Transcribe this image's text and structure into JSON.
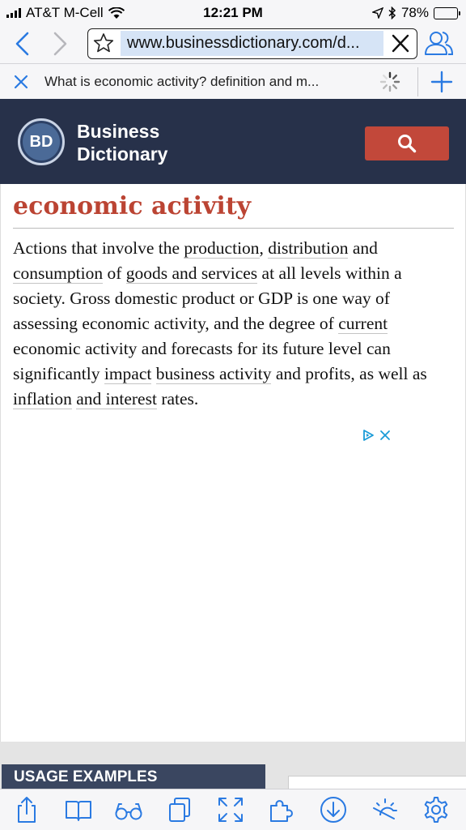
{
  "status": {
    "carrier": "AT&T M-Cell",
    "time": "12:21 PM",
    "battery_text": "78%",
    "battery_level": 0.78
  },
  "browser": {
    "url": "www.businessdictionary.com/d...",
    "tab_title": "What is economic activity? definition and m...",
    "accent": "#2a7ae2"
  },
  "site": {
    "logo_initials": "BD",
    "name_line1": "Business",
    "name_line2": "Dictionary",
    "header_color": "#27314a",
    "search_color": "#c2483a"
  },
  "article": {
    "term": "economic activity",
    "t1": "Actions that involve the ",
    "l1": "production",
    "t2": ", ",
    "l2": "distribution",
    "t3": " and ",
    "l3": "consumption",
    "t4": " of ",
    "l4": "goods and services",
    "t5": " at all levels within a society. Gross domestic product or GDP is one way of assessing economic activity, and the degree of ",
    "l5": "current",
    "t6": " economic activity and forecasts for its future level can significantly ",
    "l6": "impact",
    "t7": " ",
    "l7": "business activity",
    "t8": " and profits, as well as ",
    "l8": "inflation",
    "t9": " ",
    "l9": "and interest",
    "t10": " rates."
  },
  "usage": {
    "label": "USAGE EXAMPLES"
  }
}
